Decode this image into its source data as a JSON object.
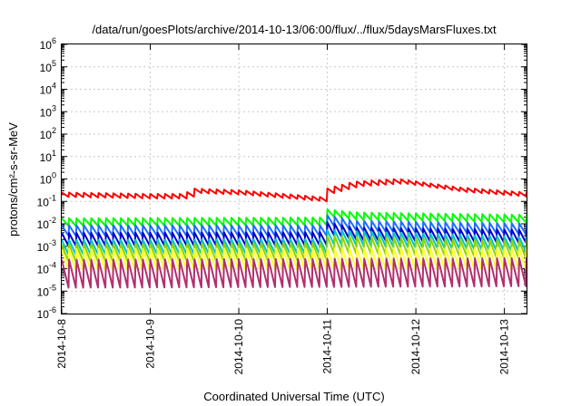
{
  "chart_data": {
    "type": "line",
    "title": "/data/run/goesPlots/archive/2014-10-13/06:00/flux/../flux/5daysMarsFluxes.txt",
    "xlabel": "Coordinated Universal Time (UTC)",
    "ylabel": "protons/cm²-s-sr-MeV",
    "yscale": "log",
    "ylim": [
      1e-06,
      1000000.0
    ],
    "xlim": [
      "2014-10-08T00:00",
      "2014-10-13T06:00"
    ],
    "x_ticks": [
      "2014-10-8",
      "2014-10-9",
      "2014-10-10",
      "2014-10-11",
      "2014-10-12",
      "2014-10-13"
    ],
    "y_ticks": [
      {
        "base": "10",
        "exp": "6"
      },
      {
        "base": "10",
        "exp": "5"
      },
      {
        "base": "10",
        "exp": "4"
      },
      {
        "base": "10",
        "exp": "3"
      },
      {
        "base": "10",
        "exp": "2"
      },
      {
        "base": "10",
        "exp": "1"
      },
      {
        "base": "10",
        "exp": "0"
      },
      {
        "base": "10",
        "exp": "-1"
      },
      {
        "base": "10",
        "exp": "-2"
      },
      {
        "base": "10",
        "exp": "-3"
      },
      {
        "base": "10",
        "exp": "-4"
      },
      {
        "base": "10",
        "exp": "-5"
      },
      {
        "base": "10",
        "exp": "-6"
      }
    ],
    "grid": true,
    "sawtooth_period_hours": 2,
    "series": [
      {
        "color": "#ff0000",
        "base": [
          [
            0,
            0.2
          ],
          [
            1,
            0.17
          ],
          [
            1.4,
            0.17
          ],
          [
            1.45,
            0.3
          ],
          [
            2,
            0.25
          ],
          [
            2.98,
            0.12
          ],
          [
            3.0,
            0.3
          ],
          [
            3.3,
            0.6
          ],
          [
            3.8,
            0.8
          ],
          [
            4.5,
            0.33
          ],
          [
            5.25,
            0.2
          ]
        ],
        "amp": 1.6
      },
      {
        "color": "#00ff00",
        "base": [
          [
            0,
            0.012
          ],
          [
            2.98,
            0.013
          ],
          [
            3.0,
            0.03
          ],
          [
            3.3,
            0.022
          ],
          [
            5.25,
            0.017
          ]
        ],
        "amp": 2.2
      },
      {
        "color": "#1e6fff",
        "base": [
          [
            0,
            0.005
          ],
          [
            2.98,
            0.005
          ],
          [
            3.0,
            0.014
          ],
          [
            3.3,
            0.008
          ],
          [
            5.25,
            0.006
          ]
        ],
        "amp": 3.0
      },
      {
        "color": "#0000cc",
        "base": [
          [
            0,
            0.002
          ],
          [
            2.98,
            0.0022
          ],
          [
            3.0,
            0.006
          ],
          [
            3.3,
            0.0035
          ],
          [
            5.25,
            0.0028
          ]
        ],
        "amp": 3.8
      },
      {
        "color": "#00c8c8",
        "base": [
          [
            0,
            0.0009
          ],
          [
            2.98,
            0.001
          ],
          [
            3.0,
            0.0025
          ],
          [
            5.25,
            0.0012
          ]
        ],
        "amp": 4.5
      },
      {
        "color": "#8fd400",
        "base": [
          [
            0,
            0.0005
          ],
          [
            2.98,
            0.0006
          ],
          [
            3.0,
            0.0012
          ],
          [
            5.25,
            0.0007
          ]
        ],
        "amp": 6.0
      },
      {
        "color": "#ffff33",
        "base": [
          [
            0,
            0.00025
          ],
          [
            5.25,
            0.00028
          ]
        ],
        "amp": 9.0
      },
      {
        "color": "#b03070",
        "base": [
          [
            0,
            6e-05
          ],
          [
            5.25,
            7e-05
          ]
        ],
        "amp": 18.0
      }
    ]
  }
}
